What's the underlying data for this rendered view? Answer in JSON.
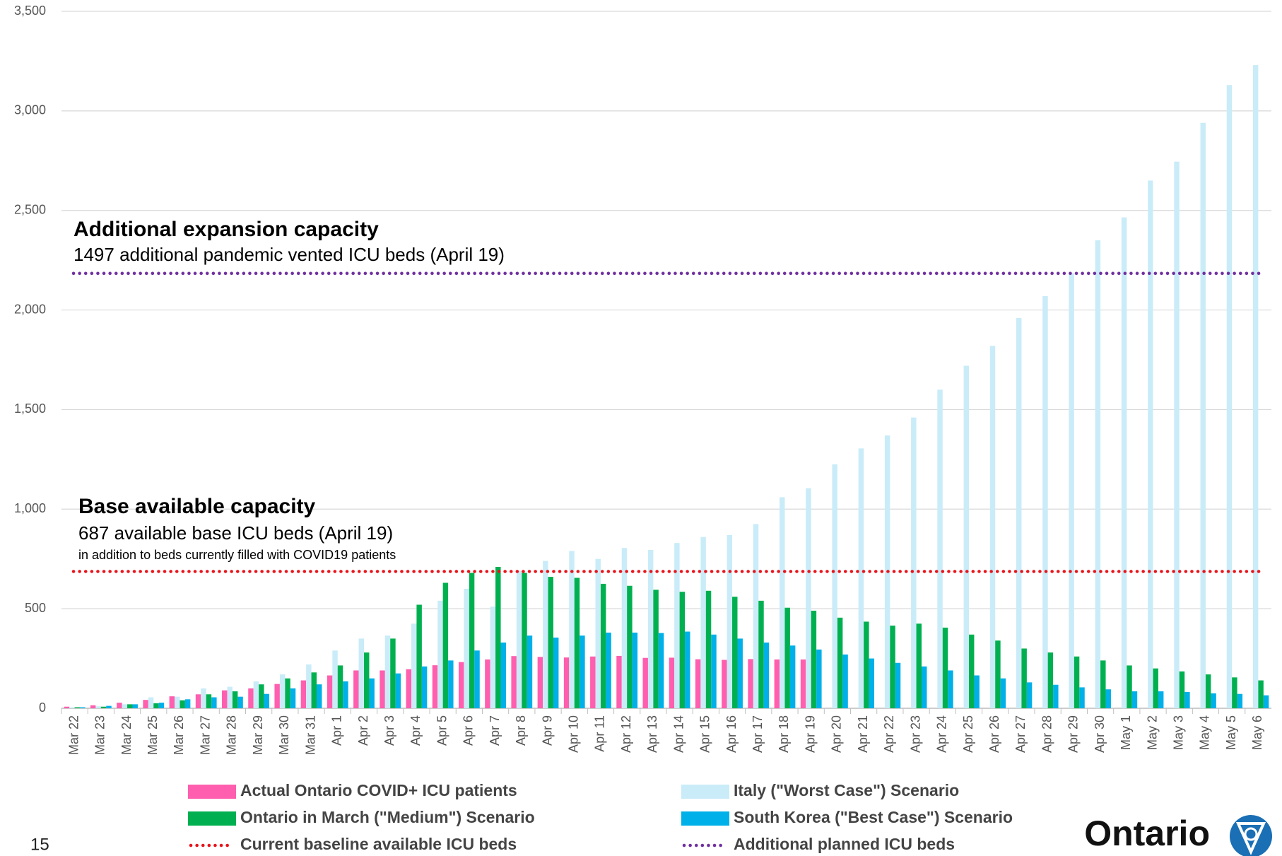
{
  "chart_data": {
    "type": "bar",
    "categories": [
      "Mar 22",
      "Mar 23",
      "Mar 24",
      "Mar 25",
      "Mar 26",
      "Mar 27",
      "Mar 28",
      "Mar 29",
      "Mar 30",
      "Mar 31",
      "Apr 1",
      "Apr 2",
      "Apr 3",
      "Apr 4",
      "Apr 5",
      "Apr 6",
      "Apr 7",
      "Apr 8",
      "Apr 9",
      "Apr 10",
      "Apr 11",
      "Apr 12",
      "Apr 13",
      "Apr 14",
      "Apr 15",
      "Apr 16",
      "Apr 17",
      "Apr 18",
      "Apr 19",
      "Apr 20",
      "Apr 21",
      "Apr 22",
      "Apr 23",
      "Apr 24",
      "Apr 25",
      "Apr 26",
      "Apr 27",
      "Apr 28",
      "Apr 29",
      "Apr 30",
      "May 1",
      "May 2",
      "May 3",
      "May 4",
      "May 5",
      "May 6"
    ],
    "series": [
      {
        "name": "Actual Ontario COVID+ ICU patients",
        "color": "#ff5fae",
        "values": [
          8,
          15,
          28,
          42,
          60,
          70,
          90,
          100,
          122,
          140,
          165,
          190,
          190,
          196,
          216,
          232,
          245,
          262,
          258,
          255,
          260,
          263,
          253,
          254,
          246,
          243,
          247,
          245,
          245,
          null,
          null,
          null,
          null,
          null,
          null,
          null,
          null,
          null,
          null,
          null,
          null,
          null,
          null,
          null,
          null,
          null
        ]
      },
      {
        "name": "Italy (\"Worst Case\") Scenario",
        "color": "#c9ecf8",
        "values": [
          5,
          10,
          20,
          55,
          58,
          100,
          108,
          135,
          170,
          220,
          290,
          350,
          365,
          425,
          540,
          600,
          510,
          690,
          740,
          790,
          750,
          805,
          795,
          830,
          860,
          870,
          925,
          1060,
          1105,
          1225,
          1305,
          1370,
          1460,
          1600,
          1720,
          1820,
          1960,
          2070,
          2185,
          2350,
          2465,
          2650,
          2745,
          2940,
          3130,
          3230
        ]
      },
      {
        "name": "Ontario in March (\"Medium\") Scenario",
        "color": "#00b050",
        "values": [
          5,
          8,
          20,
          25,
          40,
          70,
          85,
          120,
          150,
          180,
          215,
          280,
          350,
          520,
          630,
          680,
          710,
          680,
          660,
          655,
          625,
          615,
          595,
          585,
          590,
          560,
          540,
          505,
          490,
          455,
          435,
          415,
          425,
          405,
          370,
          340,
          300,
          280,
          260,
          240,
          215,
          200,
          185,
          170,
          155,
          140
        ]
      },
      {
        "name": "South Korea (\"Best Case\") Scenario",
        "color": "#00b0e8",
        "values": [
          5,
          12,
          20,
          28,
          45,
          55,
          58,
          72,
          100,
          120,
          135,
          150,
          175,
          210,
          240,
          290,
          330,
          365,
          355,
          365,
          380,
          380,
          378,
          385,
          370,
          350,
          330,
          315,
          295,
          270,
          250,
          228,
          210,
          190,
          165,
          150,
          130,
          118,
          105,
          95,
          85,
          85,
          82,
          75,
          72,
          65
        ]
      }
    ],
    "reference_lines": [
      {
        "name": "Current baseline available ICU beds",
        "value": 687,
        "color": "#e8141b"
      },
      {
        "name": "Additional planned ICU beds",
        "value": 2184,
        "color": "#7030a0"
      }
    ],
    "annotations": [
      {
        "title": "Additional expansion capacity",
        "text": "1497 additional pandemic vented ICU beds (April 19)"
      },
      {
        "title": "Base available capacity",
        "text": "687 available base ICU beds (April 19)",
        "note": "in addition to beds currently filled with COVID19 patients"
      }
    ],
    "ylim": [
      0,
      3500
    ],
    "yticks": [
      0,
      {
        "value": 500,
        "label": "500"
      },
      {
        "value": 1000,
        "label": "1,000"
      },
      {
        "value": 1500,
        "label": "1,500"
      },
      {
        "value": 2000,
        "label": "2,000"
      },
      {
        "value": 2500,
        "label": "2,500"
      },
      {
        "value": 3000,
        "label": "3,000"
      },
      {
        "value": 3500,
        "label": "3,500"
      }
    ],
    "grid": true
  },
  "page_number": "15",
  "logo": "Ontario"
}
